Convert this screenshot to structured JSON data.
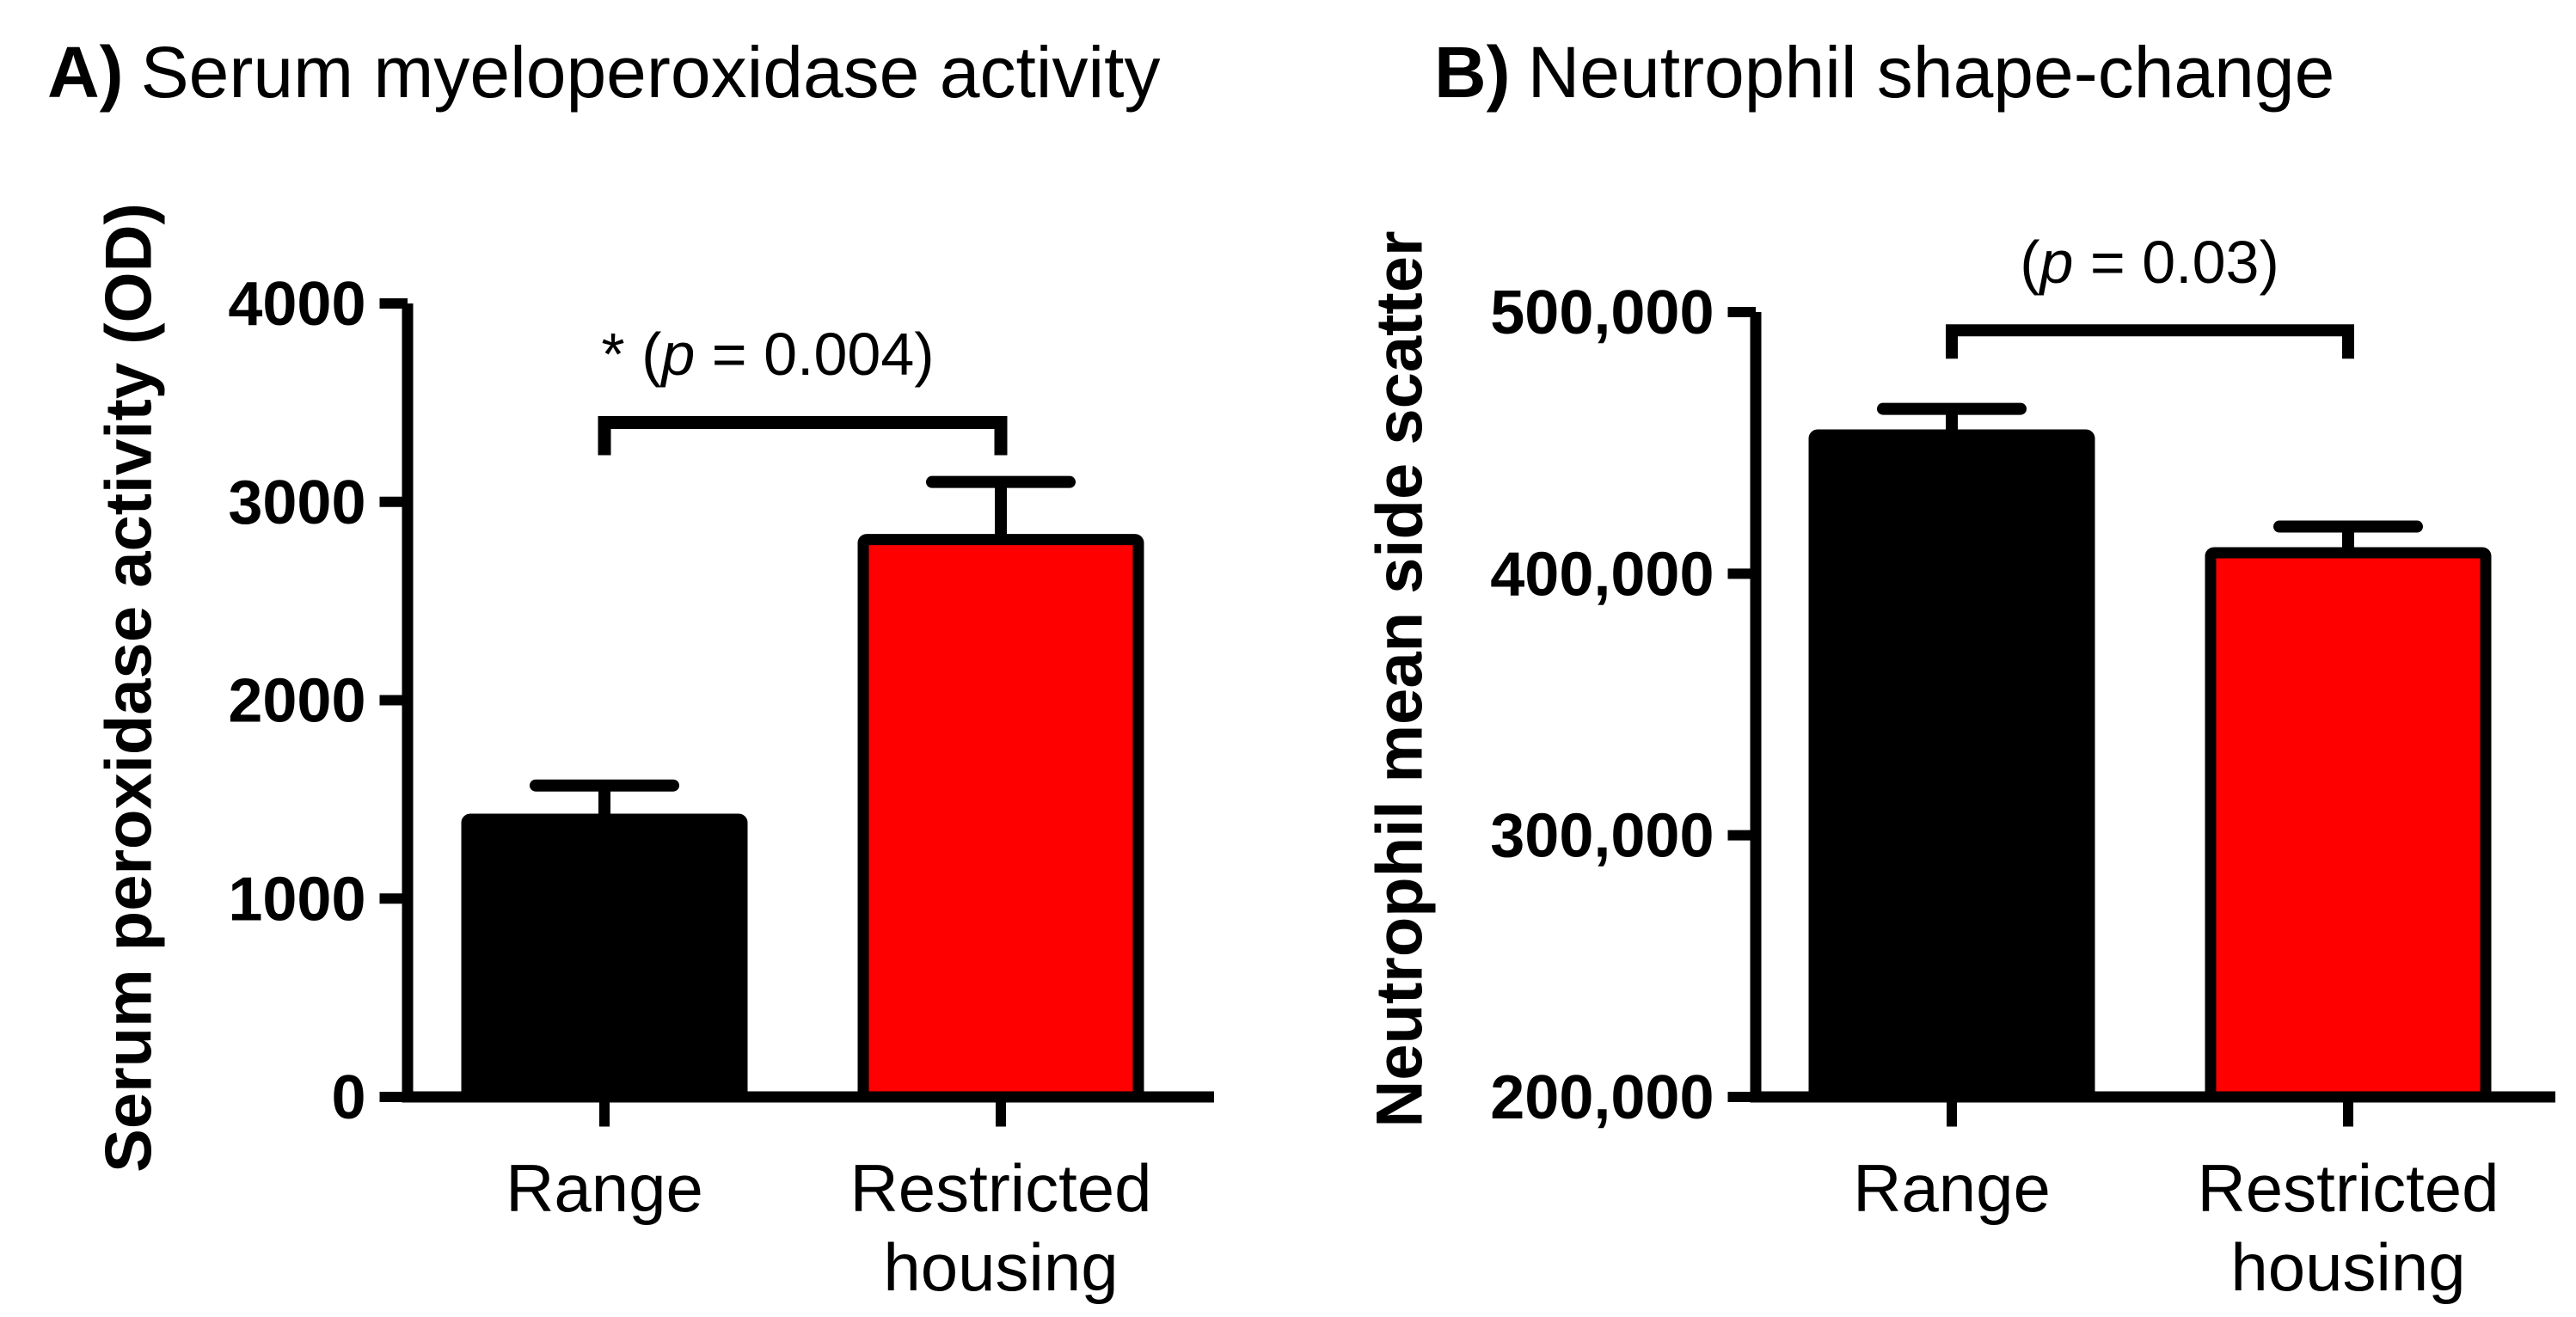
{
  "figure": {
    "background_color": "#FFFFFF",
    "ink_color": "#000000",
    "accent_red": "#FF0000"
  },
  "panels": {
    "a": {
      "label_prefix": "A)",
      "title": "Serum myeloperoxidase activity",
      "y_axis_label": "Serum peroxidase activity (OD)",
      "significance": {
        "prefix": "* (",
        "p_symbol": "p",
        "suffix": " = 0.004)"
      }
    },
    "b": {
      "label_prefix": "B)",
      "title": "Neutrophil shape-change",
      "y_axis_label": "Neutrophil mean side scatter",
      "significance": {
        "prefix": "(",
        "p_symbol": "p",
        "suffix": " = 0.03)"
      }
    }
  },
  "chart_data": [
    {
      "type": "bar",
      "panel": "A",
      "title": "Serum myeloperoxidase activity",
      "xlabel": "",
      "ylabel": "Serum peroxidase activity (OD)",
      "categories": [
        "Range",
        "Restricted housing"
      ],
      "values": [
        1400,
        2810
      ],
      "error_upper": [
        1570,
        3100
      ],
      "bar_colors": [
        "#000000",
        "#FF0000"
      ],
      "bar_outline": "#000000",
      "ylim": [
        0,
        4000
      ],
      "yticks": [
        0,
        1000,
        2000,
        3000,
        4000
      ],
      "ytick_labels": [
        "0",
        "1000",
        "2000",
        "3000",
        "4000"
      ],
      "significance_label": "* (p = 0.004)",
      "significance_bracket_level": 3400,
      "grid": false,
      "legend": false
    },
    {
      "type": "bar",
      "panel": "B",
      "title": "Neutrophil shape-change",
      "xlabel": "",
      "ylabel": "Neutrophil mean side scatter",
      "categories": [
        "Range",
        "Restricted housing"
      ],
      "values": [
        453000,
        408000
      ],
      "error_upper": [
        463000,
        418000
      ],
      "bar_colors": [
        "#000000",
        "#FF0000"
      ],
      "bar_outline": "#000000",
      "ylim": [
        200000,
        500000
      ],
      "yticks": [
        200000,
        300000,
        400000,
        500000
      ],
      "ytick_labels": [
        "200,000",
        "300,000",
        "400,000",
        "500,000"
      ],
      "significance_label": "(p = 0.03)",
      "significance_bracket_level": 493000,
      "grid": false,
      "legend": false
    }
  ]
}
